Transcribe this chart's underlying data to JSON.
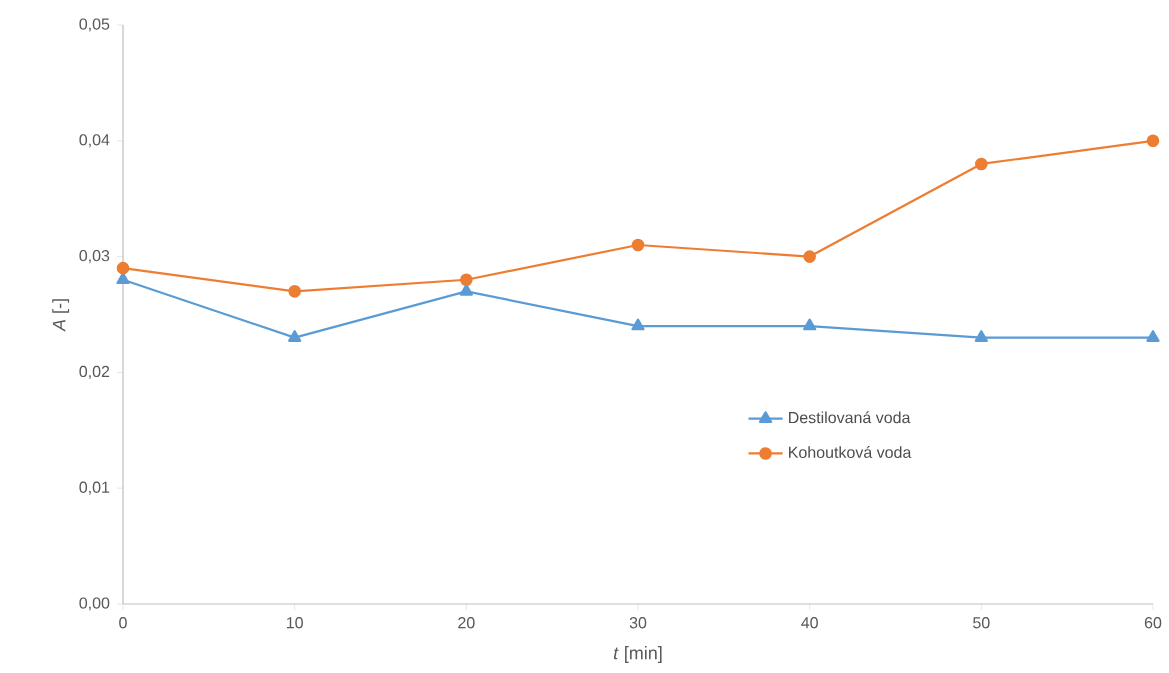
{
  "chart_data": {
    "type": "line",
    "xlabel": "*t* [min]",
    "ylabel": "*A* [-]",
    "x": [
      0,
      10,
      20,
      30,
      40,
      50,
      60
    ],
    "series": [
      {
        "name": "Destilovaná voda",
        "color": "#5b9bd5",
        "marker": "triangle",
        "values": [
          0.028,
          0.023,
          0.027,
          0.024,
          0.024,
          0.023,
          0.023
        ]
      },
      {
        "name": "Kohoutková voda",
        "color": "#ed7d31",
        "marker": "circle",
        "values": [
          0.029,
          0.027,
          0.028,
          0.031,
          0.03,
          0.038,
          0.04
        ]
      }
    ],
    "xlim": [
      0,
      60
    ],
    "xticks": [
      0,
      10,
      20,
      30,
      40,
      50,
      60
    ],
    "ylim": [
      0,
      0.05
    ],
    "yticks": [
      {
        "value": 0,
        "label": "0,00"
      },
      {
        "value": 0.01,
        "label": "0,01"
      },
      {
        "value": 0.02,
        "label": "0,02"
      },
      {
        "value": 0.03,
        "label": "0,03"
      },
      {
        "value": 0.04,
        "label": "0,04"
      },
      {
        "value": 0.05,
        "label": "0,05"
      }
    ],
    "grid": false,
    "legend": "right",
    "line_style": "solid"
  }
}
